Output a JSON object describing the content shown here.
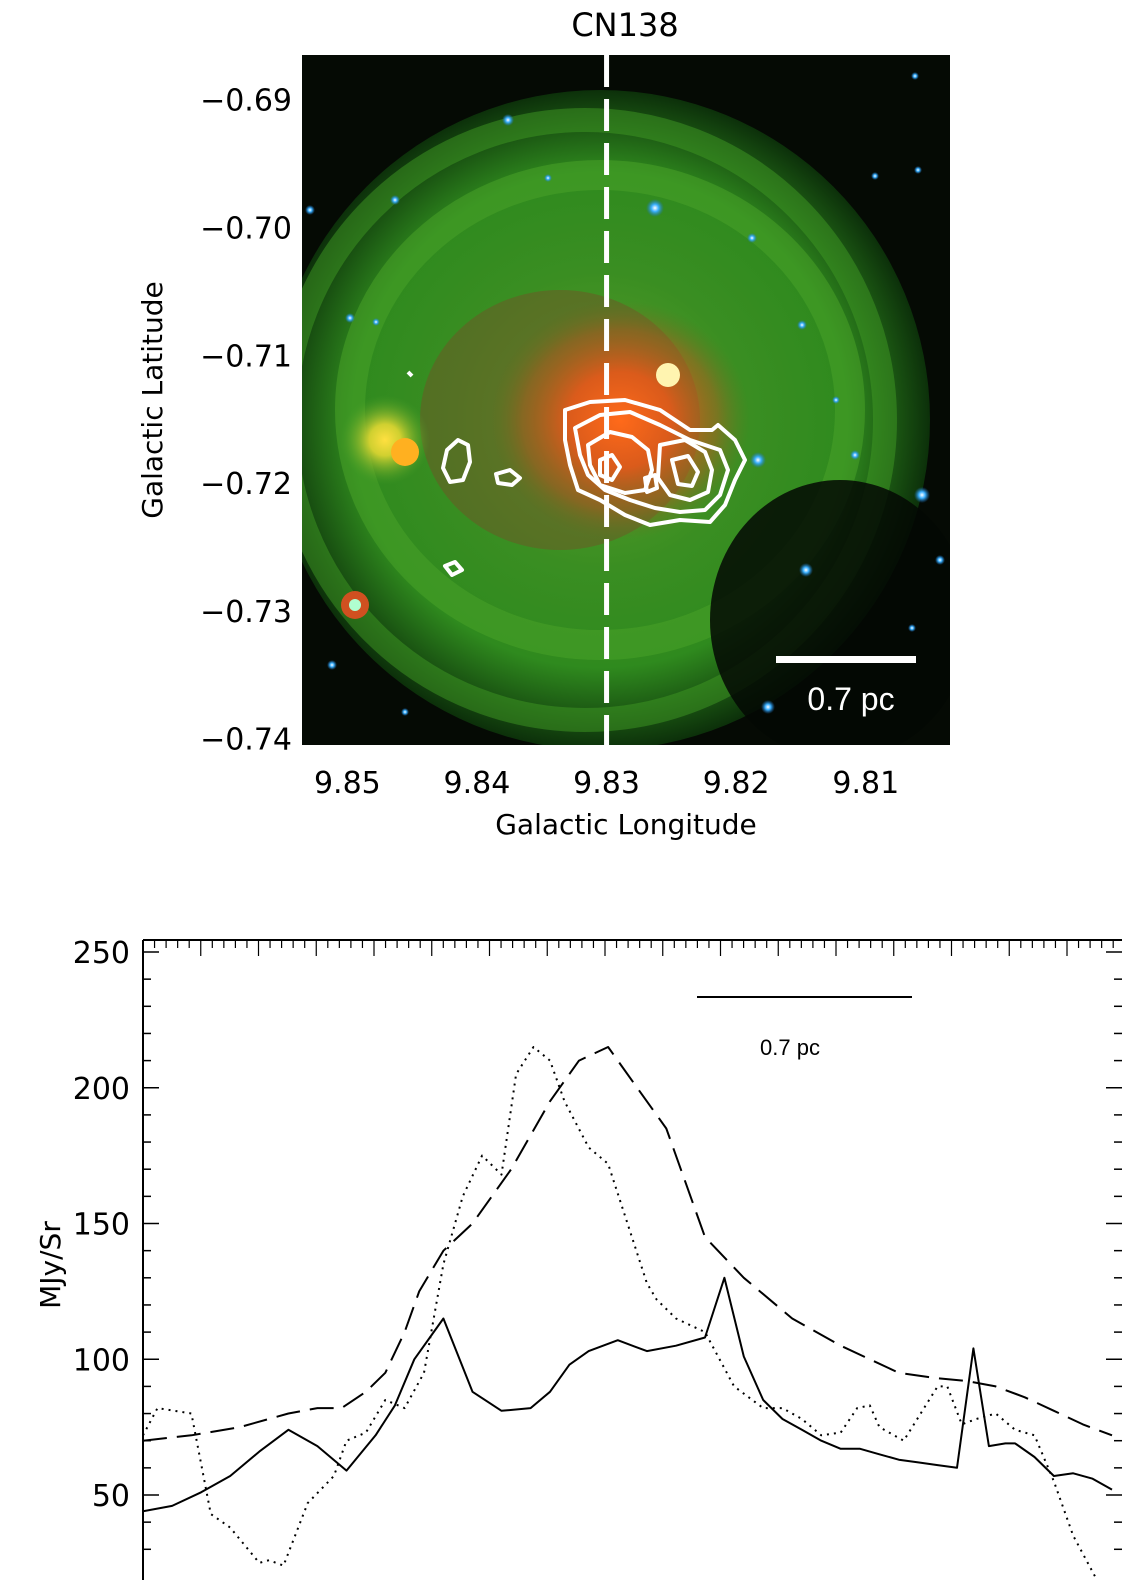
{
  "chart_data": [
    {
      "type": "image",
      "title": "CN138",
      "xlabel": "Galactic Longitude",
      "ylabel": "Galactic Latitude",
      "x_ticks": [
        "9.85",
        "9.84",
        "9.83",
        "9.82",
        "9.81"
      ],
      "y_ticks": [
        "-0.69",
        "-0.70",
        "-0.71",
        "-0.72",
        "-0.73",
        "-0.74"
      ],
      "xlim": [
        9.8535,
        9.8035
      ],
      "ylim": [
        -0.7405,
        -0.6865
      ],
      "cut_longitude": 9.83,
      "scale_bar_label": "0.7 pc",
      "colors": {
        "green": "#2f9a1f",
        "red": "#e0561a",
        "stars": "#2aa0ff",
        "contours": "#ffffff"
      }
    },
    {
      "type": "line",
      "xlabel": "",
      "ylabel": "MJy/Sr",
      "y_ticks": [
        "50",
        "100",
        "150",
        "200",
        "250"
      ],
      "ylim": [
        30,
        250
      ],
      "xlim": [
        0,
        100
      ],
      "scale_bar_label": "0.7 pc",
      "series": [
        {
          "style": "solid",
          "x": [
            0,
            3,
            6,
            9,
            12,
            15,
            18,
            21,
            24,
            26,
            28,
            31,
            34,
            37,
            40,
            42,
            44,
            46,
            49,
            52,
            55,
            58,
            60,
            62,
            64,
            66,
            68,
            70,
            72,
            74,
            76,
            78,
            80,
            82,
            84,
            85.7,
            87.3,
            89,
            90,
            92,
            94,
            96,
            98,
            100
          ],
          "y": [
            44,
            46,
            51,
            57,
            66,
            74,
            68,
            59,
            72,
            83,
            100,
            115,
            88,
            81,
            82,
            88,
            98,
            103,
            107,
            103,
            105,
            108,
            130,
            101,
            85,
            78,
            74,
            70,
            67,
            67,
            65,
            63,
            62,
            61,
            60,
            104,
            68,
            69,
            69,
            64,
            57,
            58,
            56,
            52
          ]
        },
        {
          "style": "dotted",
          "x": [
            0,
            1.5,
            5,
            7,
            9,
            12,
            13,
            14.5,
            17,
            19.7,
            21,
            23,
            25,
            27,
            29,
            31,
            33,
            35,
            37,
            38.5,
            40.3,
            42,
            43.5,
            46,
            48,
            50,
            52,
            53,
            55,
            58,
            61,
            64,
            66,
            68,
            70,
            72,
            73.7,
            75,
            76,
            78.5,
            82,
            83,
            84.5,
            86,
            88,
            90,
            92,
            94,
            96,
            99
          ],
          "y": [
            72,
            82,
            80,
            43,
            38,
            25,
            26,
            24,
            47,
            57,
            70,
            73,
            85,
            82,
            95,
            135,
            160,
            175,
            168,
            205,
            215,
            210,
            195,
            178,
            172,
            150,
            128,
            122,
            115,
            110,
            90,
            82,
            82,
            78,
            72,
            73,
            82,
            83,
            75,
            70,
            90,
            90,
            76,
            78,
            80,
            74,
            72,
            55,
            35,
            15
          ]
        },
        {
          "style": "dashed",
          "x": [
            0,
            5,
            10,
            15,
            18,
            20.5,
            23,
            25,
            27,
            28.5,
            31,
            34,
            38,
            42,
            45,
            48,
            51,
            54,
            58,
            62,
            67,
            72,
            78,
            82,
            85,
            88,
            91,
            94,
            97,
            100
          ],
          "y": [
            70,
            72,
            75,
            80,
            82,
            82,
            88,
            95,
            110,
            125,
            140,
            150,
            170,
            195,
            210,
            215,
            200,
            185,
            145,
            130,
            115,
            105,
            95,
            93,
            92,
            90,
            86,
            81,
            76,
            72
          ]
        }
      ]
    }
  ]
}
